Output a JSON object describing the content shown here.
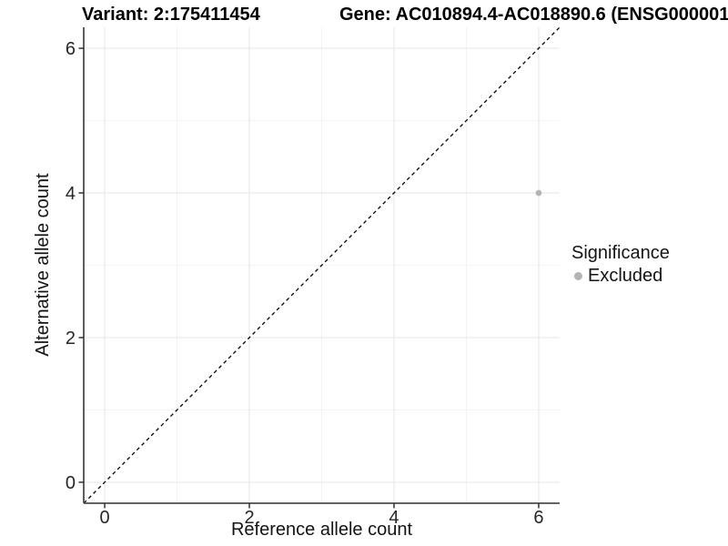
{
  "title": {
    "variant": "Variant: 2:175411454",
    "gene": "Gene: AC010894.4-AC018890.6 (ENSG000001"
  },
  "axes": {
    "x_label": "Reference allele count",
    "y_label": "Alternative allele count"
  },
  "legend": {
    "title": "Significance",
    "items": [
      {
        "label": "Excluded",
        "color": "#b4b4b4"
      }
    ]
  },
  "colors": {
    "background": "#ffffff",
    "axis_line": "#4d4d4d",
    "tick_mark": "#333333",
    "tick_label": "#262626",
    "major_grid": "#e9e9e9",
    "minor_grid": "#f3f3f3",
    "reference_line": "#000000",
    "point": "#b4b4b4"
  },
  "chart_data": {
    "type": "scatter",
    "title": "Variant: 2:175411454    Gene: AC010894.4-AC018890.6 (ENSG000001",
    "xlabel": "Reference allele count",
    "ylabel": "Alternative allele count",
    "xlim": [
      -0.29,
      6.29
    ],
    "ylim": [
      -0.29,
      6.29
    ],
    "x_ticks": [
      0,
      2,
      4,
      6
    ],
    "y_ticks": [
      0,
      2,
      4,
      6
    ],
    "x_minor_ticks": [
      1,
      3,
      5
    ],
    "y_minor_ticks": [
      1,
      3,
      5
    ],
    "grid": true,
    "legend_position": "right",
    "series": [
      {
        "name": "Excluded",
        "color": "#b4b4b4",
        "points": [
          {
            "x": 6,
            "y": 4
          }
        ]
      }
    ],
    "reference_line": {
      "type": "identity",
      "slope": 1,
      "intercept": 0,
      "style": "dashed",
      "color": "#000000"
    }
  }
}
